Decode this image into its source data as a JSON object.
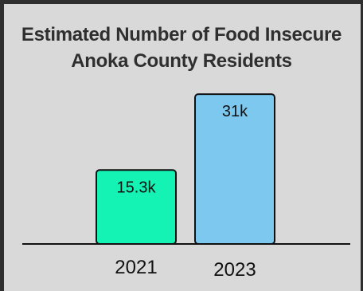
{
  "chart_data": {
    "type": "bar",
    "title_lines": [
      "Estimated Number of Food Insecure",
      "Anoka County Residents"
    ],
    "categories": [
      "2021",
      "2023"
    ],
    "values": [
      15300,
      31000
    ],
    "data_labels": [
      "15.3k",
      "31k"
    ],
    "colors": [
      "#14f2b4",
      "#7dc8ef"
    ],
    "xlabel": "",
    "ylabel": "",
    "ylim": [
      0,
      33000
    ],
    "grid": false,
    "legend": "none"
  }
}
